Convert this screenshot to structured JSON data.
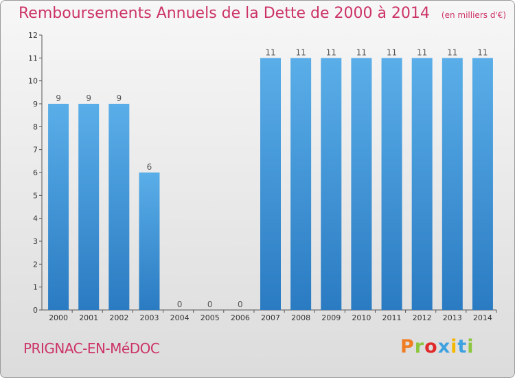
{
  "chart_data": {
    "type": "bar",
    "title": "Remboursements Annuels de la Dette de 2000 à 2014",
    "unit": "(en milliers d'€)",
    "categories": [
      "2000",
      "2001",
      "2002",
      "2003",
      "2004",
      "2005",
      "2006",
      "2007",
      "2008",
      "2009",
      "2010",
      "2011",
      "2012",
      "2013",
      "2014"
    ],
    "values": [
      9,
      9,
      9,
      6,
      0,
      0,
      0,
      11,
      11,
      11,
      11,
      11,
      11,
      11,
      11
    ],
    "ylim": [
      0,
      12
    ],
    "yticks": [
      0,
      1,
      2,
      3,
      4,
      5,
      6,
      7,
      8,
      9,
      10,
      11,
      12
    ],
    "grid": false,
    "bar_color": "#3d8fd6",
    "title_color": "#cc3366"
  },
  "footer": {
    "commune": "PRIGNAC-EN-MéDOC",
    "logo_text": "Proxiti",
    "logo_colors": [
      "#f07d22",
      "#8cc63f",
      "#e02a2a",
      "#3fa2e0",
      "#f5b800",
      "#3fa2e0",
      "#8cc63f"
    ]
  }
}
